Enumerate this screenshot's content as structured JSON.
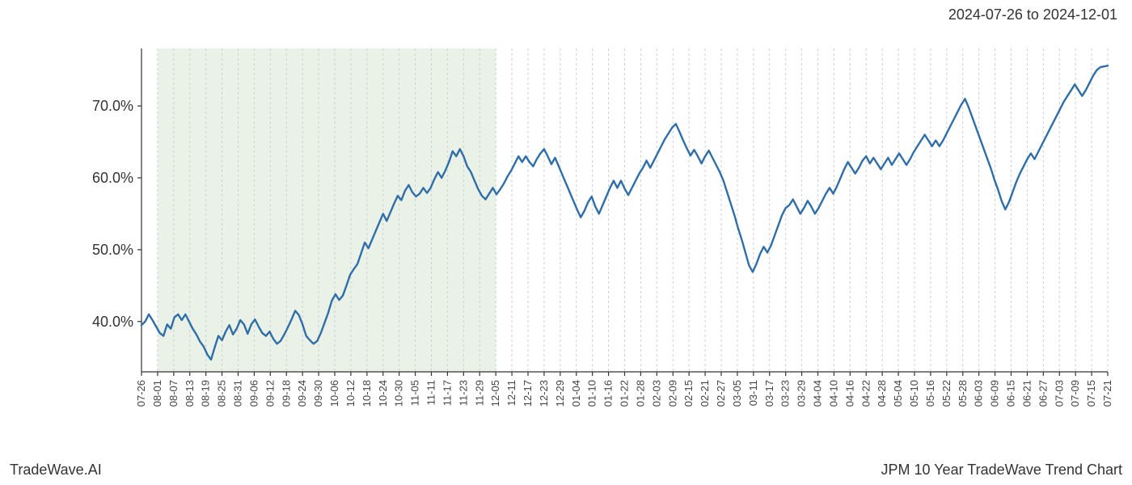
{
  "header": {
    "date_range": "2024-07-26 to 2024-12-01"
  },
  "footer": {
    "left": "TradeWave.AI",
    "right": "JPM 10 Year TradeWave Trend Chart"
  },
  "chart": {
    "type": "line",
    "background_color": "#ffffff",
    "plot_background": "#ffffff",
    "highlight_band": {
      "fill": "#d9e8d3",
      "opacity": 0.55,
      "x_start": "08-01",
      "x_end": "12-05"
    },
    "line": {
      "color": "#2f6ea8",
      "width": 2.4
    },
    "grid": {
      "vertical_color": "#cfcfcf",
      "vertical_dash": "3,3",
      "vertical_width": 1,
      "horizontal": false
    },
    "axes": {
      "color": "#333333",
      "width": 1.2,
      "tick_length": 5
    },
    "y_axis": {
      "min": 33,
      "max": 78,
      "ticks": [
        {
          "value": 40,
          "label": "40.0%"
        },
        {
          "value": 50,
          "label": "50.0%"
        },
        {
          "value": 60,
          "label": "60.0%"
        },
        {
          "value": 70,
          "label": "70.0%"
        }
      ],
      "label_fontsize": 18
    },
    "x_axis": {
      "label_fontsize": 13,
      "label_rotation": -90,
      "ticks": [
        "07-26",
        "08-01",
        "08-07",
        "08-13",
        "08-19",
        "08-25",
        "08-31",
        "09-06",
        "09-12",
        "09-18",
        "09-24",
        "09-30",
        "10-06",
        "10-12",
        "10-18",
        "10-24",
        "10-30",
        "11-05",
        "11-11",
        "11-17",
        "11-23",
        "11-29",
        "12-05",
        "12-11",
        "12-17",
        "12-23",
        "12-29",
        "01-04",
        "01-10",
        "01-16",
        "01-22",
        "01-28",
        "02-03",
        "02-09",
        "02-15",
        "02-21",
        "02-27",
        "03-05",
        "03-11",
        "03-17",
        "03-23",
        "03-29",
        "04-04",
        "04-10",
        "04-16",
        "04-22",
        "04-28",
        "05-04",
        "05-10",
        "05-16",
        "05-22",
        "05-28",
        "06-03",
        "06-09",
        "06-15",
        "06-21",
        "06-27",
        "07-03",
        "07-09",
        "07-15",
        "07-21"
      ]
    },
    "series": [
      {
        "name": "trend",
        "color": "#2f6ea8",
        "values": [
          39.5,
          40.0,
          41.0,
          40.2,
          39.3,
          38.4,
          38.0,
          39.6,
          39.0,
          40.6,
          41.0,
          40.2,
          41.0,
          40.0,
          39.0,
          38.2,
          37.2,
          36.5,
          35.4,
          34.7,
          36.4,
          38.0,
          37.4,
          38.6,
          39.5,
          38.2,
          39.0,
          40.2,
          39.6,
          38.3,
          39.6,
          40.3,
          39.3,
          38.4,
          38.0,
          38.6,
          37.6,
          36.9,
          37.3,
          38.2,
          39.2,
          40.3,
          41.5,
          40.9,
          39.6,
          38.0,
          37.4,
          36.9,
          37.3,
          38.4,
          39.8,
          41.2,
          42.9,
          43.8,
          43.0,
          43.6,
          45.0,
          46.5,
          47.3,
          48.0,
          49.5,
          51.0,
          50.2,
          51.4,
          52.6,
          53.8,
          55.0,
          54.0,
          55.2,
          56.4,
          57.5,
          56.9,
          58.2,
          59.0,
          58.0,
          57.4,
          57.8,
          58.6,
          57.9,
          58.6,
          59.8,
          60.8,
          60.0,
          61.0,
          62.2,
          63.7,
          63.0,
          64.0,
          63.0,
          61.6,
          60.8,
          59.6,
          58.4,
          57.5,
          57.0,
          57.8,
          58.6,
          57.7,
          58.4,
          59.2,
          60.2,
          61.0,
          62.0,
          63.0,
          62.2,
          63.0,
          62.2,
          61.6,
          62.6,
          63.4,
          64.0,
          63.0,
          61.9,
          62.8,
          61.6,
          60.4,
          59.2,
          58.0,
          56.8,
          55.6,
          54.5,
          55.4,
          56.6,
          57.4,
          56.0,
          55.0,
          56.2,
          57.4,
          58.6,
          59.6,
          58.6,
          59.6,
          58.5,
          57.6,
          58.6,
          59.6,
          60.6,
          61.4,
          62.4,
          61.4,
          62.4,
          63.4,
          64.4,
          65.4,
          66.2,
          67.0,
          67.5,
          66.4,
          65.2,
          64.1,
          63.1,
          63.9,
          63.0,
          62.0,
          63.0,
          63.8,
          62.8,
          61.8,
          60.8,
          59.6,
          58.0,
          56.4,
          54.8,
          53.0,
          51.4,
          49.6,
          47.8,
          46.9,
          48.0,
          49.4,
          50.4,
          49.6,
          50.6,
          52.0,
          53.4,
          54.8,
          55.8,
          56.2,
          57.0,
          56.0,
          55.0,
          55.8,
          56.8,
          56.0,
          55.0,
          55.8,
          56.8,
          57.8,
          58.6,
          57.8,
          58.8,
          60.0,
          61.2,
          62.2,
          61.4,
          60.6,
          61.4,
          62.4,
          63.0,
          62.0,
          62.8,
          62.0,
          61.2,
          62.0,
          62.8,
          61.8,
          62.6,
          63.4,
          62.6,
          61.8,
          62.6,
          63.6,
          64.4,
          65.2,
          66.0,
          65.2,
          64.4,
          65.2,
          64.4,
          65.2,
          66.2,
          67.2,
          68.2,
          69.2,
          70.2,
          71.0,
          69.8,
          68.4,
          67.0,
          65.6,
          64.2,
          62.8,
          61.4,
          59.8,
          58.4,
          56.8,
          55.6,
          56.6,
          58.0,
          59.4,
          60.6,
          61.6,
          62.6,
          63.4,
          62.6,
          63.6,
          64.6,
          65.6,
          66.6,
          67.6,
          68.6,
          69.6,
          70.6,
          71.4,
          72.2,
          73.0,
          72.2,
          71.4,
          72.2,
          73.2,
          74.2,
          75.0,
          75.4,
          75.5,
          75.6
        ]
      }
    ]
  }
}
